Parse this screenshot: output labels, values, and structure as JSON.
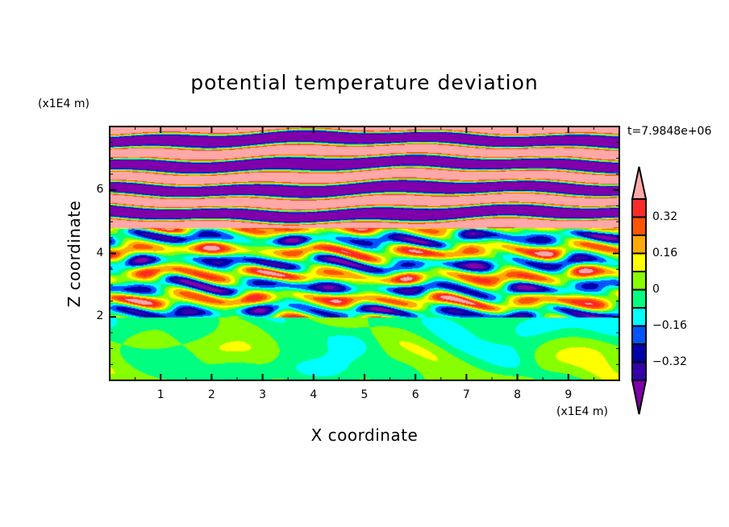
{
  "chart_data": {
    "type": "heatmap",
    "subtype": "filled-contour",
    "title": "potential temperature deviation",
    "xlabel": "X coordinate",
    "ylabel": "Z coordinate",
    "x_unit": "(x1E4 m)",
    "y_unit": "(x1E4 m)",
    "xlim": [
      0,
      10
    ],
    "ylim": [
      0,
      8
    ],
    "xticks": [
      "1",
      "2",
      "3",
      "4",
      "5",
      "6",
      "7",
      "8",
      "9"
    ],
    "yticks": [
      "2",
      "4",
      "6"
    ],
    "annotation": "t=7.9848e+06",
    "colorbar": {
      "levels": [
        -0.4,
        -0.32,
        -0.24,
        -0.16,
        -0.08,
        0,
        0.08,
        0.16,
        0.24,
        0.32,
        0.4
      ],
      "tick_labels": [
        "0.32",
        "0.16",
        "0",
        "-0.16",
        "-0.32"
      ],
      "tick_values": [
        0.32,
        0.16,
        0,
        -0.16,
        -0.32
      ],
      "colors_low_to_high": [
        "#7f00aa",
        "#3300aa",
        "#0000aa",
        "#0055ff",
        "#00ffff",
        "#00ff80",
        "#88ff00",
        "#ffff00",
        "#ffaa00",
        "#ff5500",
        "#ff2828",
        "#ffa8a8"
      ],
      "extend": "both"
    },
    "description_regions": [
      {
        "z_range": [
          0,
          2
        ],
        "values": "near zero (-0.08 to 0.08)"
      },
      {
        "z_range": [
          2,
          4.8
        ],
        "values": "turbulent mixed (-0.4 to 0.4)"
      },
      {
        "z_range": [
          4.8,
          8
        ],
        "values": "alternating bands beyond ±0.4"
      }
    ]
  }
}
